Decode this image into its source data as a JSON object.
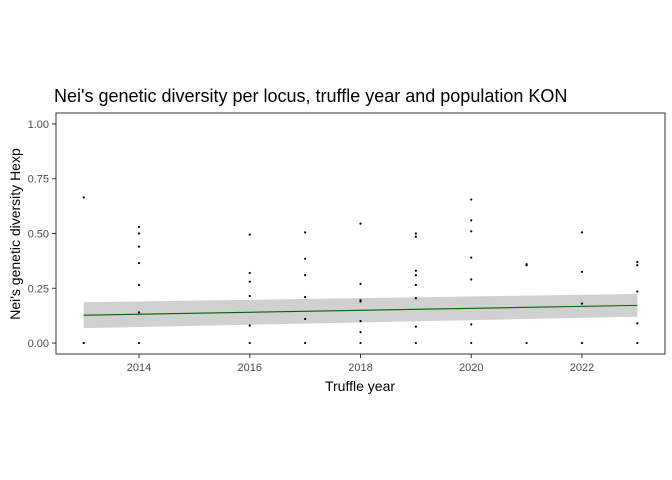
{
  "chart_data": {
    "type": "scatter",
    "title": "Nei's genetic diversity per locus, truffle year and population KON",
    "xlabel": "Truffle year",
    "ylabel": "Nei's genetic diversity Hexp",
    "xlim": [
      12.5,
      23.5
    ],
    "ylim": [
      -0.05,
      1.05
    ],
    "x_ticks": [
      14,
      16,
      18,
      20,
      22
    ],
    "x_tick_labels": [
      "2014",
      "2016",
      "2018",
      "2020",
      "2022"
    ],
    "y_ticks": [
      0.0,
      0.25,
      0.5,
      0.75,
      1.0
    ],
    "y_tick_labels": [
      "0.00",
      "0.25",
      "0.50",
      "0.75",
      "1.00"
    ],
    "grid": false,
    "point_color": "#000000",
    "points": [
      {
        "x": 13,
        "y": 0.665
      },
      {
        "x": 13,
        "y": 0.0
      },
      {
        "x": 13,
        "y": 0.0
      },
      {
        "x": 14,
        "y": 0.53
      },
      {
        "x": 14,
        "y": 0.5
      },
      {
        "x": 14,
        "y": 0.44
      },
      {
        "x": 14,
        "y": 0.365
      },
      {
        "x": 14,
        "y": 0.265
      },
      {
        "x": 14,
        "y": 0.14
      },
      {
        "x": 14,
        "y": 0.0
      },
      {
        "x": 16,
        "y": 0.495
      },
      {
        "x": 16,
        "y": 0.32
      },
      {
        "x": 16,
        "y": 0.28
      },
      {
        "x": 16,
        "y": 0.215
      },
      {
        "x": 16,
        "y": 0.08
      },
      {
        "x": 16,
        "y": 0.0
      },
      {
        "x": 17,
        "y": 0.505
      },
      {
        "x": 17,
        "y": 0.385
      },
      {
        "x": 17,
        "y": 0.31
      },
      {
        "x": 17,
        "y": 0.21
      },
      {
        "x": 17,
        "y": 0.11
      },
      {
        "x": 17,
        "y": 0.0
      },
      {
        "x": 18,
        "y": 0.545
      },
      {
        "x": 18,
        "y": 0.27
      },
      {
        "x": 18,
        "y": 0.195
      },
      {
        "x": 18,
        "y": 0.19
      },
      {
        "x": 18,
        "y": 0.1
      },
      {
        "x": 18,
        "y": 0.05
      },
      {
        "x": 18,
        "y": 0.0
      },
      {
        "x": 19,
        "y": 0.5
      },
      {
        "x": 19,
        "y": 0.485
      },
      {
        "x": 19,
        "y": 0.33
      },
      {
        "x": 19,
        "y": 0.31
      },
      {
        "x": 19,
        "y": 0.265
      },
      {
        "x": 19,
        "y": 0.205
      },
      {
        "x": 19,
        "y": 0.075
      },
      {
        "x": 19,
        "y": 0.0
      },
      {
        "x": 20,
        "y": 0.655
      },
      {
        "x": 20,
        "y": 0.56
      },
      {
        "x": 20,
        "y": 0.51
      },
      {
        "x": 20,
        "y": 0.39
      },
      {
        "x": 20,
        "y": 0.29
      },
      {
        "x": 20,
        "y": 0.085
      },
      {
        "x": 20,
        "y": 0.0
      },
      {
        "x": 21,
        "y": 0.36
      },
      {
        "x": 21,
        "y": 0.355
      },
      {
        "x": 21,
        "y": 0.0
      },
      {
        "x": 22,
        "y": 0.505
      },
      {
        "x": 22,
        "y": 0.325
      },
      {
        "x": 22,
        "y": 0.18
      },
      {
        "x": 22,
        "y": 0.0
      },
      {
        "x": 23,
        "y": 0.37
      },
      {
        "x": 23,
        "y": 0.355
      },
      {
        "x": 23,
        "y": 0.235
      },
      {
        "x": 23,
        "y": 0.09
      },
      {
        "x": 23,
        "y": 0.0
      }
    ],
    "trend": {
      "method": "linear",
      "color": "#006400",
      "band_color": "#d0d0d0",
      "x": [
        13,
        23
      ],
      "y": [
        0.127,
        0.172
      ],
      "lower": [
        0.068,
        0.12
      ],
      "upper": [
        0.186,
        0.224
      ]
    }
  }
}
